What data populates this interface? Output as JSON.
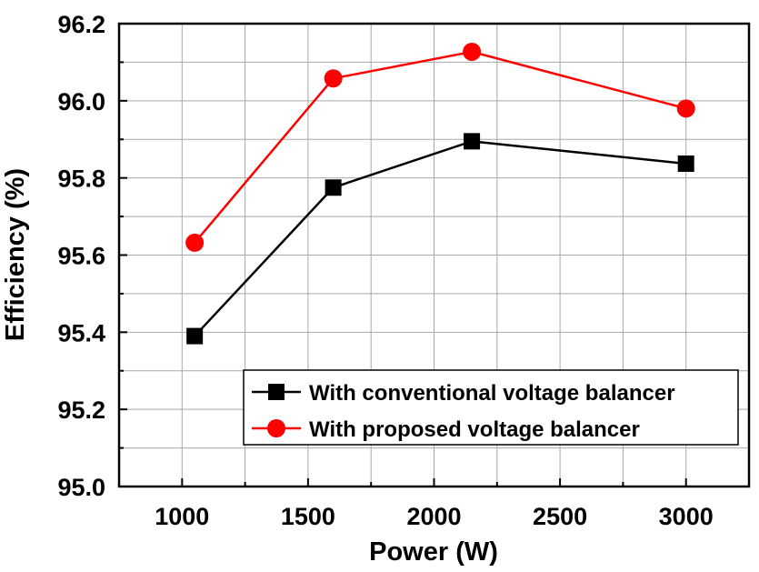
{
  "chart_data": {
    "type": "line",
    "xlabel": "Power (W)",
    "ylabel": "Efficiency (%)",
    "xlim": [
      750,
      3250
    ],
    "ylim": [
      95.0,
      96.2
    ],
    "x_ticks": [
      "1000",
      "1500",
      "2000",
      "2500",
      "3000"
    ],
    "y_ticks": [
      "95.0",
      "95.2",
      "95.4",
      "95.6",
      "95.8",
      "96.0",
      "96.2"
    ],
    "grid": true,
    "legend_position": "bottom-right",
    "series": [
      {
        "name": "With conventional voltage balancer",
        "color": "#000000",
        "marker": "square",
        "x": [
          1050,
          1600,
          2150,
          3000
        ],
        "y": [
          95.39,
          95.775,
          95.895,
          95.837
        ]
      },
      {
        "name": "With proposed voltage balancer",
        "color": "#ff0000",
        "marker": "circle",
        "x": [
          1050,
          1600,
          2150,
          3000
        ],
        "y": [
          95.632,
          96.058,
          96.127,
          95.98
        ]
      }
    ]
  }
}
